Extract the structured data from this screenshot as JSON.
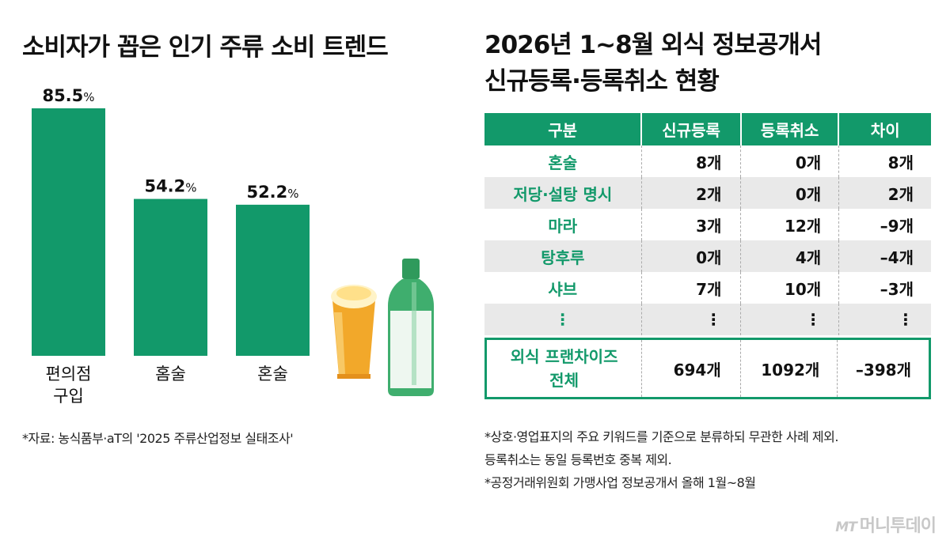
{
  "left_title": "소비자가 꼽은 인기 주류 소비 트렌드",
  "right_title_lines": [
    "2026년 1~8월 외식 정보공개서",
    "신규등록·등록취소 현황"
  ],
  "chart_data": {
    "type": "bar",
    "categories": [
      "편의점 구입",
      "홈술",
      "혼술"
    ],
    "category_lines": [
      [
        "편의점",
        "구입"
      ],
      [
        "홈술"
      ],
      [
        "혼술"
      ]
    ],
    "values": [
      85.5,
      54.2,
      52.2
    ],
    "value_labels": [
      "85.5",
      "54.2",
      "52.2"
    ],
    "unit": "%",
    "color": "#12996a",
    "ylim": [
      0,
      100
    ],
    "grid": false,
    "title": "",
    "xlabel": "",
    "ylabel": ""
  },
  "source_left": "*자료: 농식품부·aT의 '2025 주류산업정보 실태조사'",
  "table": {
    "headers": [
      "구분",
      "신규등록",
      "등록취소",
      "차이"
    ],
    "rows": [
      [
        "혼술",
        "8개",
        "0개",
        "8개"
      ],
      [
        "저당·설탕 명시",
        "2개",
        "0개",
        "2개"
      ],
      [
        "마라",
        "3개",
        "12개",
        "–9개"
      ],
      [
        "탕후루",
        "0개",
        "4개",
        "–4개"
      ],
      [
        "샤브",
        "7개",
        "10개",
        "–3개"
      ],
      [
        "⋮",
        "⋮",
        "⋮",
        "⋮"
      ]
    ],
    "total_label_lines": [
      "외식 프랜차이즈",
      "전체"
    ],
    "total": [
      "694개",
      "1092개",
      "–398개"
    ]
  },
  "notes": [
    "*상호·영업표지의 주요 키워드를 기준으로 분류하되 무관한 사례 제외.",
    "등록취소는 동일 등록번호 중복 제외.",
    "*공정거래위원회 가맹사업 정보공개서 올해 1월~8월"
  ],
  "brand": {
    "mark": "MT",
    "name": "머니투데이"
  },
  "colors": {
    "accent": "#12996a",
    "row_alt": "#e9e9e9",
    "beer": "#f2a82a",
    "bottle": "#3fae6e"
  }
}
